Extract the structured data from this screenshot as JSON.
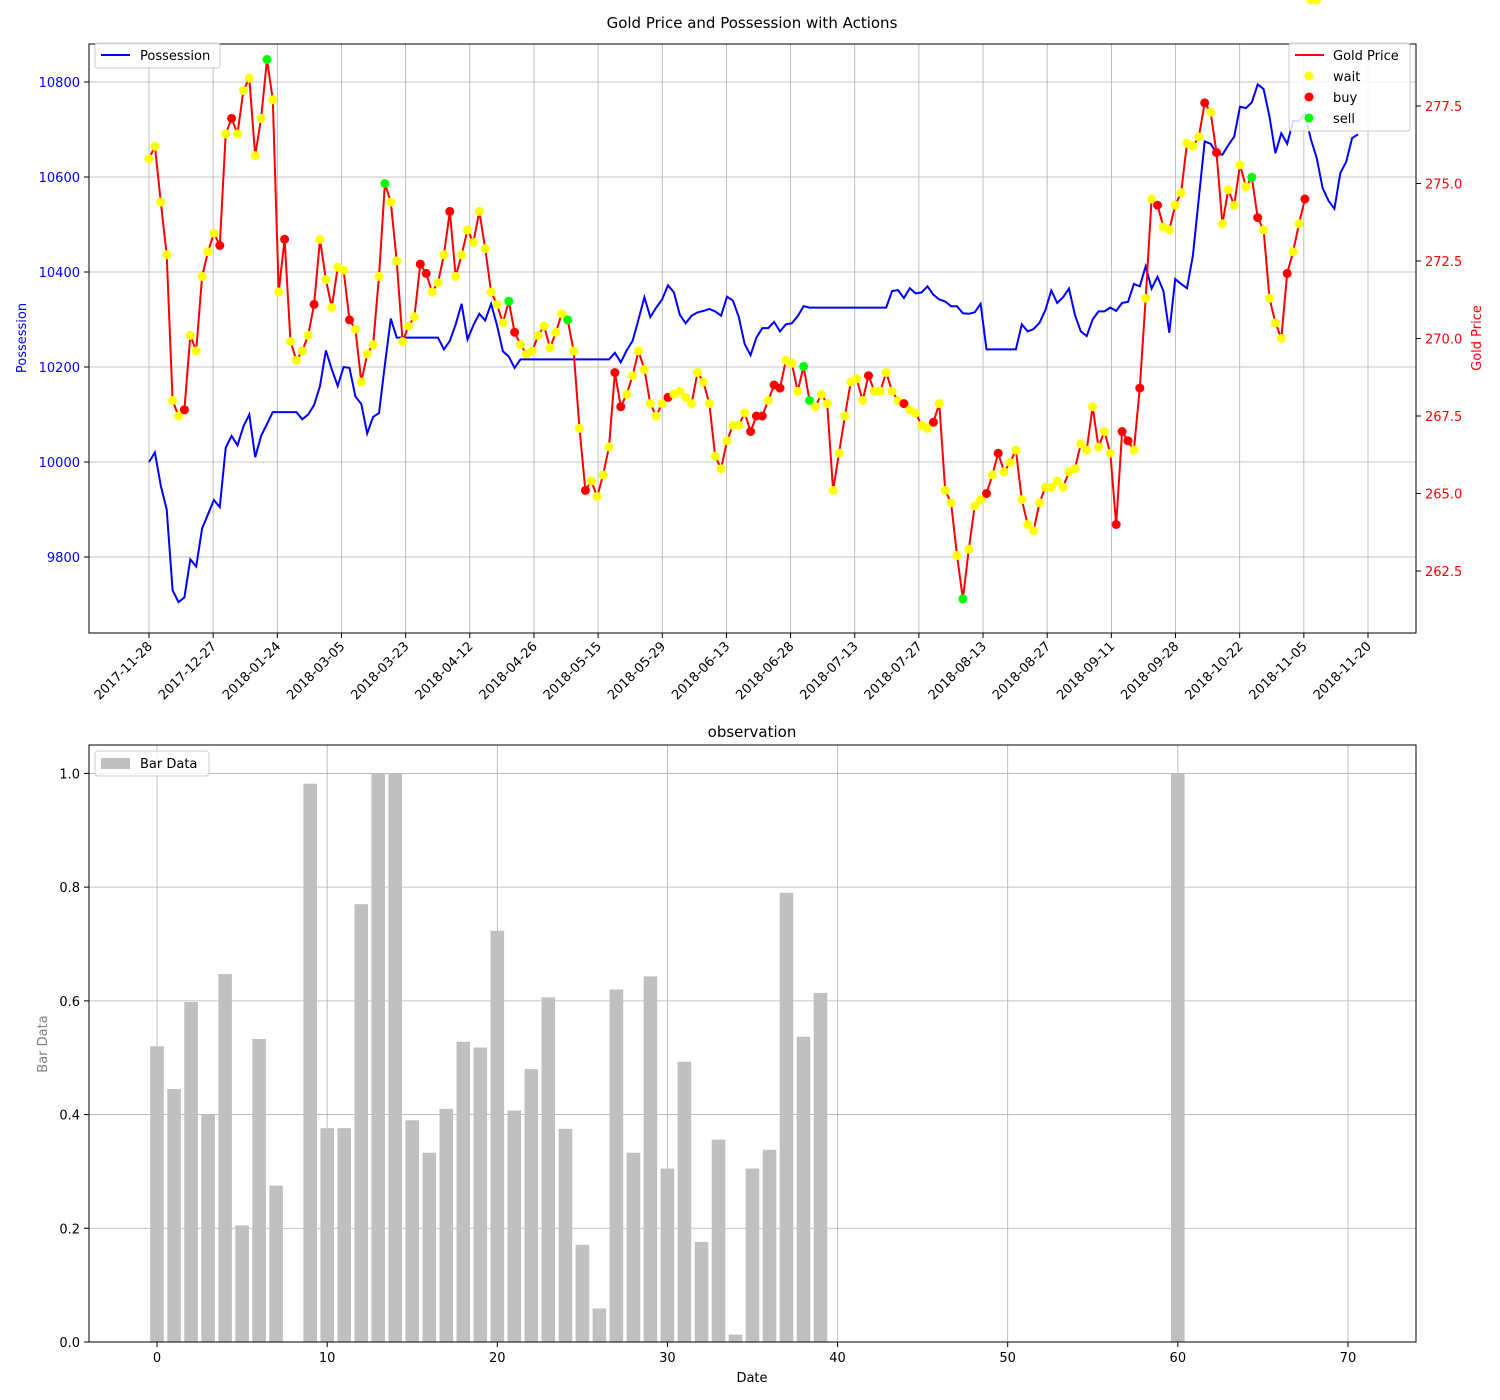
{
  "chart_data": [
    {
      "type": "line",
      "title": "Gold Price and Possession with Actions",
      "x_tick_labels": [
        "2017-11-28",
        "2017-12-27",
        "2018-01-24",
        "2018-03-05",
        "2018-03-23",
        "2018-04-12",
        "2018-04-26",
        "2018-05-15",
        "2018-05-29",
        "2018-06-13",
        "2018-06-28",
        "2018-07-13",
        "2018-07-27",
        "2018-08-13",
        "2018-08-27",
        "2018-09-11",
        "2018-09-28",
        "2018-10-22",
        "2018-11-05",
        "2018-11-20"
      ],
      "grid": true,
      "left_axis": {
        "label": "Possession",
        "color": "#0000ff",
        "ticks": [
          "9800",
          "10000",
          "10200",
          "10400",
          "10600",
          "10800"
        ],
        "ylim": [
          9640,
          10880
        ]
      },
      "right_axis": {
        "label": "Gold Price",
        "color": "#ff0000",
        "ticks": [
          "262.5",
          "265.0",
          "267.5",
          "270.0",
          "272.5",
          "275.0",
          "277.5"
        ],
        "ylim": [
          260.5,
          279.5
        ]
      },
      "legend_left": {
        "placement": "top-left",
        "entries": [
          {
            "label": "Possession",
            "color": "#0000ff"
          }
        ]
      },
      "legend_right": {
        "placement": "top-right",
        "entries": [
          {
            "label": "Gold Price",
            "color": "#ff0000",
            "kind": "line"
          },
          {
            "label": "wait",
            "color": "#ffff00",
            "kind": "dot"
          },
          {
            "label": "buy",
            "color": "#ff0000",
            "kind": "dot"
          },
          {
            "label": "sell",
            "color": "#00ff00",
            "kind": "dot"
          }
        ]
      },
      "series": [
        {
          "name": "Possession",
          "axis": "left",
          "color": "#0000ff",
          "values": [
            10000,
            10020,
            9950,
            9900,
            9730,
            9705,
            9715,
            9795,
            9780,
            9860,
            9890,
            9920,
            9905,
            10030,
            10055,
            10035,
            10075,
            10100,
            10010,
            10055,
            10080,
            10105,
            10105,
            10105,
            10105,
            10105,
            10090,
            10100,
            10120,
            10160,
            10235,
            10195,
            10160,
            10200,
            10198,
            10138,
            10122,
            10060,
            10095,
            10103,
            10205,
            10302,
            10262,
            10262,
            10262,
            10262,
            10262,
            10262,
            10262,
            10262,
            10237,
            10255,
            10290,
            10333,
            10258,
            10288,
            10312,
            10298,
            10333,
            10288,
            10233,
            10222,
            10198,
            10216,
            10216,
            10216,
            10216,
            10216,
            10216,
            10216,
            10216,
            10216,
            10216,
            10216,
            10216,
            10216,
            10216,
            10216,
            10216,
            10230,
            10210,
            10235,
            10255,
            10300,
            10347,
            10305,
            10325,
            10342,
            10372,
            10357,
            10310,
            10292,
            10308,
            10315,
            10318,
            10322,
            10317,
            10308,
            10348,
            10340,
            10305,
            10248,
            10225,
            10262,
            10282,
            10282,
            10295,
            10275,
            10290,
            10292,
            10307,
            10328,
            10325,
            10325,
            10325,
            10325,
            10325,
            10325,
            10325,
            10325,
            10325,
            10325,
            10325,
            10325,
            10325,
            10325,
            10360,
            10362,
            10345,
            10366,
            10355,
            10357,
            10370,
            10352,
            10342,
            10338,
            10328,
            10328,
            10313,
            10312,
            10315,
            10333,
            10237,
            10237,
            10237,
            10237,
            10237,
            10237,
            10290,
            10275,
            10280,
            10293,
            10320,
            10361,
            10335,
            10347,
            10365,
            10310,
            10275,
            10265,
            10300,
            10317,
            10317,
            10325,
            10318,
            10335,
            10337,
            10375,
            10370,
            10412,
            10365,
            10390,
            10360,
            10272,
            10385,
            10375,
            10366,
            10435,
            10555,
            10675,
            10670,
            10650,
            10647,
            10667,
            10685,
            10748,
            10745,
            10757,
            10795,
            10785,
            10727,
            10650,
            10692,
            10670,
            10718,
            10718,
            10733,
            10680,
            10640,
            10577,
            10550,
            10533,
            10608,
            10632,
            10682,
            10690
          ]
        },
        {
          "name": "Gold Price",
          "axis": "right",
          "color": "#ff0000",
          "values": [
            275.8,
            276.2,
            274.4,
            272.7,
            268.0,
            267.5,
            267.7,
            270.1,
            269.6,
            272.0,
            272.8,
            273.4,
            273.0,
            276.6,
            277.1,
            276.6,
            278.0,
            278.4,
            275.9,
            277.1,
            279.0,
            277.7,
            271.5,
            273.2,
            269.9,
            269.3,
            269.6,
            270.1,
            271.1,
            273.2,
            271.9,
            271.0,
            272.3,
            272.2,
            270.6,
            270.3,
            268.6,
            269.5,
            269.8,
            272.0,
            275.0,
            274.4,
            272.5,
            269.9,
            270.4,
            270.7,
            272.4,
            272.1,
            271.5,
            271.8,
            272.7,
            274.1,
            272.0,
            272.7,
            273.5,
            273.1,
            274.1,
            272.9,
            271.5,
            271.1,
            270.5,
            271.2,
            270.2,
            269.8,
            269.5,
            269.6,
            270.1,
            270.4,
            269.7,
            270.2,
            270.8,
            270.6,
            269.6,
            267.1,
            265.1,
            265.4,
            264.9,
            265.6,
            266.5,
            268.9,
            267.8,
            268.2,
            268.8,
            269.6,
            269.0,
            267.9,
            267.5,
            267.9,
            268.1,
            268.2,
            268.3,
            268.1,
            267.9,
            268.9,
            268.6,
            267.9,
            266.2,
            265.8,
            266.7,
            267.2,
            267.2,
            267.6,
            267.0,
            267.5,
            267.5,
            268.0,
            268.5,
            268.4,
            269.3,
            269.2,
            268.3,
            269.1,
            268.0,
            267.8,
            268.2,
            267.9,
            265.1,
            266.3,
            267.5,
            268.6,
            268.7,
            268.0,
            268.8,
            268.3,
            268.3,
            268.9,
            268.3,
            268.0,
            267.9,
            267.7,
            267.6,
            267.2,
            267.1,
            267.3,
            267.9,
            265.1,
            264.7,
            263.0,
            261.6,
            263.2,
            264.6,
            264.8,
            265.0,
            265.6,
            266.3,
            265.7,
            266.0,
            266.4,
            264.8,
            264.0,
            263.8,
            264.7,
            265.2,
            265.2,
            265.4,
            265.2,
            265.7,
            265.8,
            266.6,
            266.4,
            267.8,
            266.5,
            267.0,
            266.3,
            264.0,
            267.0,
            266.7,
            266.4,
            268.4,
            271.3,
            274.5,
            274.3,
            273.6,
            273.5,
            274.3,
            274.7,
            276.3,
            276.2,
            276.5,
            277.6,
            277.3,
            276.0,
            273.7,
            274.8,
            274.3,
            275.6,
            274.9,
            275.2,
            273.9,
            273.5,
            271.3,
            270.5,
            270.0,
            272.1,
            272.8,
            273.7,
            274.5
          ]
        }
      ],
      "action_points": {
        "legend_labels": [
          "wait",
          "buy",
          "sell"
        ],
        "actions": [
          "wait",
          "wait",
          "wait",
          "wait",
          "wait",
          "wait",
          "buy",
          "wait",
          "wait",
          "wait",
          "wait",
          "wait",
          "buy",
          "wait",
          "buy",
          "wait",
          "wait",
          "wait",
          "wait",
          "wait",
          "sell",
          "wait",
          "wait",
          "buy",
          "wait",
          "wait",
          "wait",
          "wait",
          "buy",
          "wait",
          "wait",
          "wait",
          "wait",
          "wait",
          "buy",
          "wait",
          "wait",
          "wait",
          "wait",
          "wait",
          "sell",
          "wait",
          "wait",
          "wait",
          "wait",
          "wait",
          "buy",
          "buy",
          "wait",
          "wait",
          "wait",
          "buy",
          "wait",
          "wait",
          "wait",
          "wait",
          "wait",
          "wait",
          "wait",
          "wait",
          "wait",
          "sell",
          "buy",
          "wait",
          "wait",
          "wait",
          "wait",
          "wait",
          "wait",
          "wait",
          "wait",
          "sell",
          "wait",
          "wait",
          "buy",
          "wait",
          "wait",
          "wait",
          "wait",
          "buy",
          "buy",
          "wait",
          "wait",
          "wait",
          "wait",
          "wait",
          "wait",
          "wait",
          "buy",
          "wait",
          "wait",
          "wait",
          "wait",
          "wait",
          "wait",
          "wait",
          "wait",
          "wait",
          "wait",
          "wait",
          "wait",
          "wait",
          "buy",
          "buy",
          "buy",
          "wait",
          "buy",
          "buy",
          "wait",
          "wait",
          "wait",
          "sell",
          "sell",
          "wait",
          "wait",
          "wait",
          "wait",
          "wait",
          "wait",
          "wait",
          "wait",
          "wait",
          "buy",
          "wait",
          "wait",
          "wait",
          "wait",
          "wait",
          "buy",
          "wait",
          "wait",
          "wait",
          "wait",
          "buy",
          "wait",
          "wait",
          "wait",
          "wait",
          "sell",
          "wait",
          "wait",
          "wait",
          "buy",
          "wait",
          "buy",
          "wait",
          "wait",
          "wait",
          "wait",
          "wait",
          "wait",
          "wait",
          "wait",
          "wait",
          "wait",
          "wait",
          "wait",
          "wait",
          "wait",
          "wait",
          "wait",
          "wait",
          "wait",
          "wait",
          "buy",
          "buy",
          "buy",
          "wait",
          "buy",
          "wait",
          "wait",
          "buy",
          "wait",
          "wait",
          "wait",
          "wait",
          "wait",
          "wait",
          "wait",
          "buy",
          "wait",
          "buy",
          "wait",
          "wait",
          "wait",
          "wait",
          "wait",
          "sell",
          "buy",
          "wait",
          "wait",
          "wait",
          "wait",
          "buy",
          "wait",
          "wait",
          "buy",
          "wait",
          "wait"
        ]
      }
    },
    {
      "type": "bar",
      "title": "observation",
      "xlabel": "Date",
      "ylabel": "Bar Data",
      "xlim": [
        -4,
        74
      ],
      "ylim": [
        0,
        1.05
      ],
      "x_ticks": [
        0,
        10,
        20,
        30,
        40,
        50,
        60,
        70
      ],
      "y_ticks": [
        "0.0",
        "0.2",
        "0.4",
        "0.6",
        "0.8",
        "1.0"
      ],
      "grid": true,
      "legend": {
        "placement": "top-left",
        "entries": [
          {
            "label": "Bar Data",
            "color": "#c0c0c0"
          }
        ]
      },
      "series": [
        {
          "name": "Bar Data",
          "color": "#c0c0c0",
          "x": [
            0,
            1,
            2,
            3,
            4,
            5,
            6,
            7,
            8,
            9,
            10,
            11,
            12,
            13,
            14,
            15,
            16,
            17,
            18,
            19,
            20,
            21,
            22,
            23,
            24,
            25,
            26,
            27,
            28,
            29,
            30,
            31,
            32,
            33,
            34,
            35,
            36,
            37,
            38,
            39,
            60
          ],
          "values": [
            0.52,
            0.445,
            0.598,
            0.4,
            0.647,
            0.205,
            0.533,
            0.275,
            0,
            0.982,
            0.376,
            0.376,
            0.77,
            1.0,
            1.0,
            0.39,
            0.333,
            0.41,
            0.528,
            0.518,
            0.723,
            0.407,
            0.48,
            0.606,
            0.375,
            0.171,
            0.059,
            0.62,
            0.333,
            0.643,
            0.305,
            0.493,
            0.176,
            0.356,
            0.013,
            0.305,
            0.338,
            0.79,
            0.537,
            0.614,
            1.0
          ]
        }
      ]
    }
  ]
}
